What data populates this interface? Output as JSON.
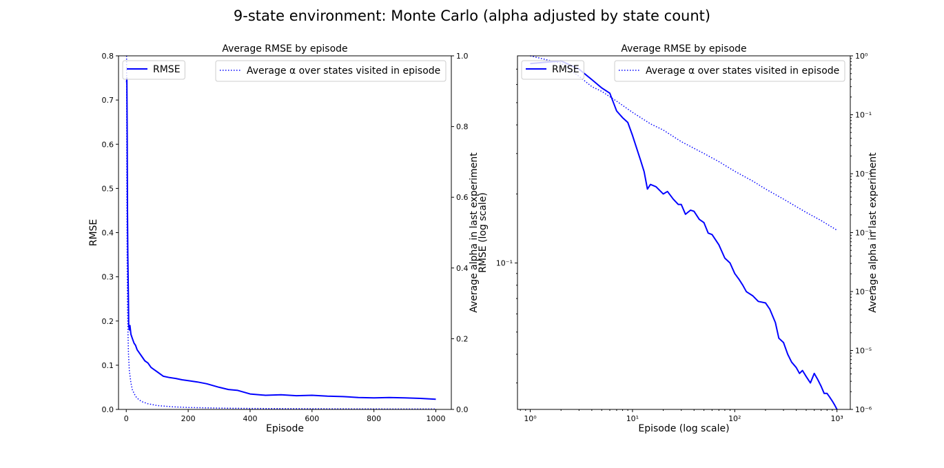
{
  "figure_title": "9-state environment: Monte Carlo (alpha adjusted by state count)",
  "colors": {
    "line": "#0000ff",
    "axes": "#000000",
    "background": "#ffffff"
  },
  "chart_data": [
    {
      "type": "line",
      "title": "Average RMSE by episode",
      "xlabel": "Episode",
      "ylabel": "RMSE",
      "y2label": "Average alpha in last experiment",
      "xlim": [
        -25,
        1050
      ],
      "ylim": [
        0,
        0.8
      ],
      "y2lim": [
        0,
        1.0
      ],
      "xscale": "linear",
      "yscale": "linear",
      "y2scale": "linear",
      "grid": false,
      "xticks": [
        0,
        200,
        400,
        600,
        800,
        1000
      ],
      "xtick_labels": [
        "0",
        "200",
        "400",
        "600",
        "800",
        "1000"
      ],
      "yticks": [
        0,
        0.1,
        0.2,
        0.3,
        0.4,
        0.5,
        0.6,
        0.7,
        0.8
      ],
      "ytick_labels": [
        "0.0",
        "0.1",
        "0.2",
        "0.3",
        "0.4",
        "0.5",
        "0.6",
        "0.7",
        "0.8"
      ],
      "y2ticks": [
        0,
        0.2,
        0.4,
        0.6,
        0.8,
        1.0
      ],
      "y2tick_labels": [
        "0.0",
        "0.2",
        "0.4",
        "0.6",
        "0.8",
        "1.0"
      ],
      "legend_left": {
        "placement": "upper-left",
        "entries": [
          "RMSE"
        ]
      },
      "legend_right": {
        "placement": "upper-right",
        "entries": [
          "Average α over states visited in episode"
        ]
      },
      "series": [
        {
          "name": "RMSE",
          "axis": "left",
          "style": "solid",
          "x": [
            1,
            2,
            3,
            4,
            5,
            7,
            8,
            10,
            12,
            15,
            20,
            25,
            30,
            35,
            40,
            50,
            60,
            70,
            80,
            90,
            100,
            120,
            140,
            160,
            180,
            200,
            230,
            260,
            300,
            330,
            360,
            400,
            450,
            500,
            550,
            600,
            650,
            700,
            750,
            800,
            850,
            900,
            950,
            1000
          ],
          "y": [
            0.74,
            0.75,
            0.62,
            0.45,
            0.35,
            0.25,
            0.19,
            0.18,
            0.19,
            0.17,
            0.16,
            0.15,
            0.145,
            0.135,
            0.13,
            0.12,
            0.11,
            0.105,
            0.095,
            0.09,
            0.085,
            0.075,
            0.072,
            0.07,
            0.067,
            0.065,
            0.062,
            0.058,
            0.05,
            0.045,
            0.043,
            0.035,
            0.032,
            0.033,
            0.031,
            0.032,
            0.03,
            0.029,
            0.027,
            0.026,
            0.027,
            0.026,
            0.025,
            0.023
          ]
        },
        {
          "name": "Average α over states visited in episode",
          "axis": "right",
          "style": "dotted",
          "x": [
            1,
            2,
            3,
            4,
            5,
            7,
            10,
            15,
            20,
            30,
            40,
            50,
            70,
            100,
            150,
            200,
            300,
            400,
            600,
            800,
            1000
          ],
          "y": [
            1.0,
            0.6,
            0.4,
            0.3,
            0.24,
            0.16,
            0.11,
            0.075,
            0.055,
            0.037,
            0.028,
            0.022,
            0.016,
            0.011,
            0.0075,
            0.0055,
            0.0037,
            0.0028,
            0.0019,
            0.0014,
            0.0011
          ]
        }
      ]
    },
    {
      "type": "line",
      "title": "Average RMSE by episode",
      "xlabel": "Episode (log scale)",
      "ylabel": "RMSE (log scale)",
      "y2label": "Average alpha in last experiment",
      "xlim": [
        0.75,
        1350
      ],
      "ylim": [
        0.023,
        0.8
      ],
      "y2lim": [
        1e-06,
        1
      ],
      "xscale": "log",
      "yscale": "log",
      "y2scale": "log",
      "grid": false,
      "xticks": [
        1,
        10,
        100,
        1000
      ],
      "xtick_labels": [
        "10⁰",
        "10¹",
        "10²",
        "10³"
      ],
      "yticks": [
        0.1
      ],
      "ytick_labels": [
        "10⁻¹"
      ],
      "y2ticks": [
        1e-06,
        1e-05,
        0.0001,
        0.001,
        0.01,
        0.1,
        1
      ],
      "y2tick_labels": [
        "10⁻⁶",
        "10⁻⁵",
        "10⁻⁴",
        "10⁻³",
        "10⁻²",
        "10⁻¹",
        "10⁰"
      ],
      "legend_left": {
        "placement": "upper-left",
        "entries": [
          "RMSE"
        ]
      },
      "legend_right": {
        "placement": "upper-right",
        "entries": [
          "Average α over states visited in episode"
        ]
      },
      "series": [
        {
          "name": "RMSE",
          "axis": "left",
          "style": "solid",
          "x": [
            1,
            2,
            3,
            4,
            5,
            6,
            7,
            8,
            9,
            10,
            12,
            13,
            14,
            15,
            17,
            20,
            22,
            25,
            28,
            30,
            33,
            37,
            40,
            45,
            50,
            55,
            60,
            70,
            80,
            90,
            100,
            110,
            120,
            130,
            150,
            170,
            200,
            220,
            250,
            270,
            300,
            330,
            360,
            400,
            430,
            460,
            500,
            550,
            600,
            650,
            700,
            750,
            800,
            850,
            900,
            950,
            1000
          ],
          "y": [
            0.74,
            0.76,
            0.7,
            0.63,
            0.58,
            0.55,
            0.46,
            0.43,
            0.41,
            0.36,
            0.28,
            0.25,
            0.21,
            0.22,
            0.215,
            0.2,
            0.205,
            0.19,
            0.18,
            0.18,
            0.163,
            0.17,
            0.168,
            0.155,
            0.15,
            0.135,
            0.133,
            0.12,
            0.105,
            0.1,
            0.09,
            0.085,
            0.08,
            0.075,
            0.072,
            0.068,
            0.067,
            0.063,
            0.055,
            0.047,
            0.045,
            0.04,
            0.037,
            0.035,
            0.033,
            0.034,
            0.032,
            0.03,
            0.033,
            0.031,
            0.029,
            0.027,
            0.027,
            0.026,
            0.025,
            0.024,
            0.023
          ]
        },
        {
          "name": "Average α over states visited in episode",
          "axis": "right",
          "style": "dotted",
          "x": [
            1,
            2,
            3,
            4,
            5,
            7,
            10,
            15,
            20,
            30,
            50,
            70,
            100,
            150,
            200,
            300,
            500,
            700,
            1000
          ],
          "y": [
            1.0,
            0.75,
            0.45,
            0.3,
            0.25,
            0.17,
            0.11,
            0.07,
            0.055,
            0.035,
            0.022,
            0.016,
            0.011,
            0.0075,
            0.0055,
            0.0037,
            0.0022,
            0.0016,
            0.0011
          ]
        }
      ]
    }
  ]
}
